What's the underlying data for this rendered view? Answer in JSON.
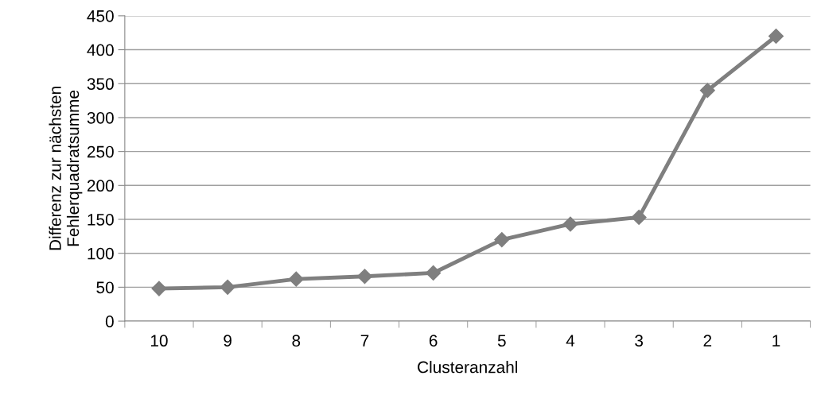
{
  "chart_data": {
    "type": "line",
    "xlabel": "Clusteranzahl",
    "ylabel": "Differenz zur nächsten\nFehlerquadratsumme",
    "categories": [
      "10",
      "9",
      "8",
      "7",
      "6",
      "5",
      "4",
      "3",
      "2",
      "1"
    ],
    "series": [
      {
        "color": "#7f7f7f",
        "values": [
          48,
          50,
          62,
          66,
          71,
          120,
          143,
          153,
          340,
          420
        ]
      }
    ],
    "ylim": [
      0,
      450
    ],
    "yticks": [
      0,
      50,
      100,
      150,
      200,
      250,
      300,
      350,
      400,
      450
    ],
    "grid": "y",
    "marker": "diamond",
    "line_style": "solid",
    "legend": false
  }
}
